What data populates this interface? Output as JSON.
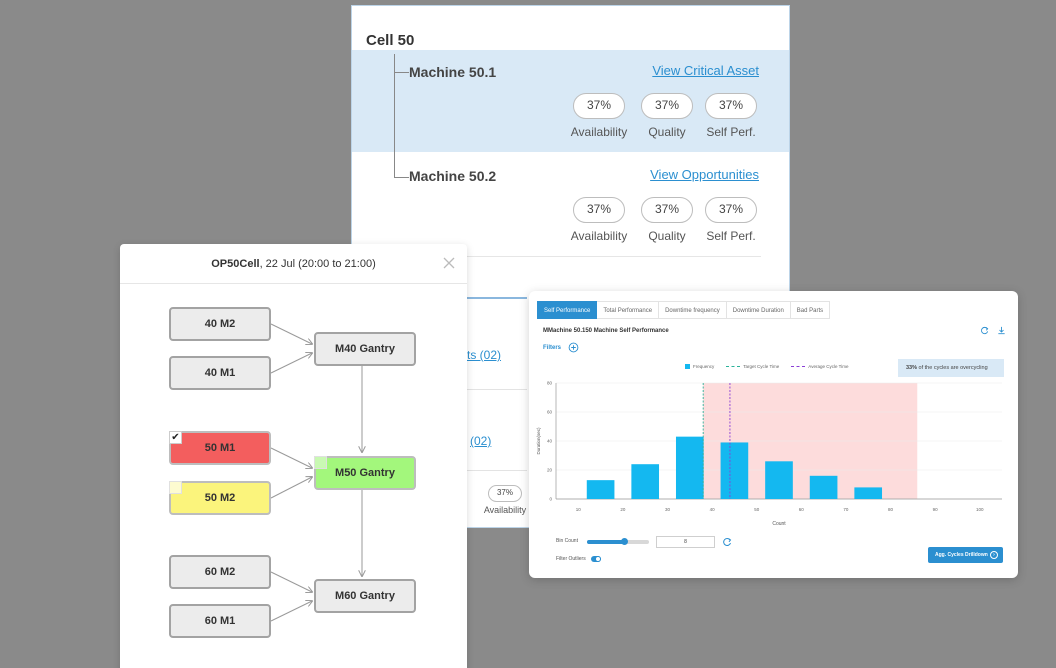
{
  "cell_panel": {
    "title": "Cell 50",
    "machines": [
      {
        "name": "Machine 50.1",
        "link": "View Critical Asset",
        "highlighted": true,
        "metrics": [
          {
            "value": "37%",
            "label": "Availability"
          },
          {
            "value": "37%",
            "label": "Quality"
          },
          {
            "value": "37%",
            "label": "Self Perf."
          }
        ]
      },
      {
        "name": "Machine 50.2",
        "link": "View Opportunities",
        "highlighted": false,
        "metrics": [
          {
            "value": "37%",
            "label": "Availability"
          },
          {
            "value": "37%",
            "label": "Quality"
          },
          {
            "value": "37%",
            "label": "Self Perf."
          }
        ]
      }
    ],
    "partial": {
      "link_1": "ts (02)",
      "link_2": "(02)",
      "pill": "37%",
      "label": "Availability"
    }
  },
  "op_panel": {
    "title_bold": "OP50Cell",
    "title_rest": ", 22 Jul (20:00 to 21:00)",
    "nodes": {
      "m40_m2": "40 M2",
      "m40_m1": "40 M1",
      "m40_gantry": "M40 Gantry",
      "m50_m1": "50 M1",
      "m50_m2": "50 M2",
      "m50_gantry": "M50 Gantry",
      "m60_m2": "60 M2",
      "m60_m1": "60 M1",
      "m60_gantry": "M60 Gantry"
    },
    "check_mark": "✔",
    "colors": {
      "red": "#f35e5e",
      "yellow": "#fbf47c",
      "green": "#a3f77c"
    }
  },
  "perf_panel": {
    "tabs": [
      "Self Performance",
      "Total Performance",
      "Downtime frequency",
      "Downtime Duration",
      "Bad Parts"
    ],
    "active_tab": 0,
    "title": "MMachine 50.150 Machine Self Performance",
    "filters_label": "Filters",
    "legend": {
      "frequency": "Frequency",
      "target": "Target Cycle Time",
      "average": "Average Cycle Time"
    },
    "info_bold": "33%",
    "info_rest": " of the cycles are overcycling",
    "bin_count_label": "Bin Count",
    "bin_count_value": "8",
    "bin_slider_fraction": 0.6,
    "filter_outliers_label": "Filter Outliers",
    "filter_outliers_on": true,
    "drill_button": "Agg. Cycles Drilldown",
    "colors": {
      "accent": "#2b8fd0",
      "bar": "#14b8f0",
      "overcycle": "#fddcdc",
      "target_line": "#2cb39a",
      "average_line": "#8a3fd6"
    }
  },
  "chart_data": {
    "type": "bar",
    "title": "MMachine 50.150 Machine Self Performance",
    "xlabel": "Count",
    "ylabel": "Duration(sec)",
    "x_ticks": [
      "10",
      "20",
      "30",
      "40",
      "50",
      "60",
      "70",
      "80",
      "90",
      "100"
    ],
    "y_ticks": [
      "0",
      "20",
      "40",
      "60",
      "80"
    ],
    "ylim": [
      0,
      80
    ],
    "xlim": [
      5,
      105
    ],
    "bars": [
      {
        "x": 15,
        "value": 13
      },
      {
        "x": 25,
        "value": 24
      },
      {
        "x": 35,
        "value": 43
      },
      {
        "x": 45,
        "value": 39
      },
      {
        "x": 55,
        "value": 26
      },
      {
        "x": 65,
        "value": 16
      },
      {
        "x": 75,
        "value": 8
      }
    ],
    "target_cycle_time_x": 38,
    "average_cycle_time_x": 44,
    "overcycle_range_x": [
      38,
      86
    ],
    "grid": true,
    "legend_position": "top"
  }
}
